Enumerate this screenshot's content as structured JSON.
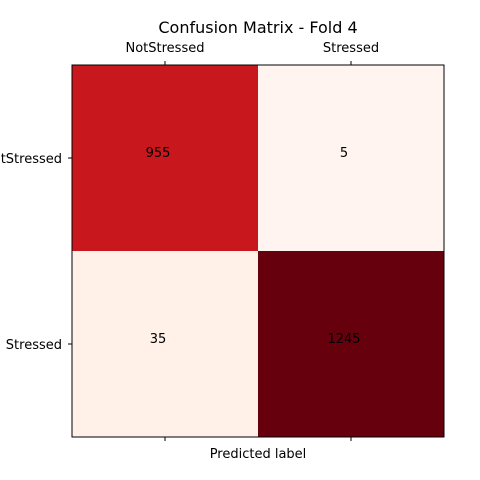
{
  "chart_data": {
    "type": "heatmap",
    "title": "Confusion Matrix - Fold 4",
    "xlabel": "Predicted label",
    "ylabel": "",
    "x_categories": [
      "NotStressed",
      "Stressed"
    ],
    "y_categories": [
      "NotStressed",
      "Stressed"
    ],
    "y_tick_labels_visible": [
      "Stressed",
      "Stressed"
    ],
    "values": [
      [
        955,
        5
      ],
      [
        35,
        1245
      ]
    ],
    "colormap": "Reds",
    "colors": {
      "cell_955": "#c8171d",
      "cell_5": "#fff4ef",
      "cell_35": "#fff0e8",
      "cell_1245": "#67000d"
    },
    "x_ticks_position": "top and bottom (labels top)",
    "grid": false,
    "legend": "none"
  }
}
